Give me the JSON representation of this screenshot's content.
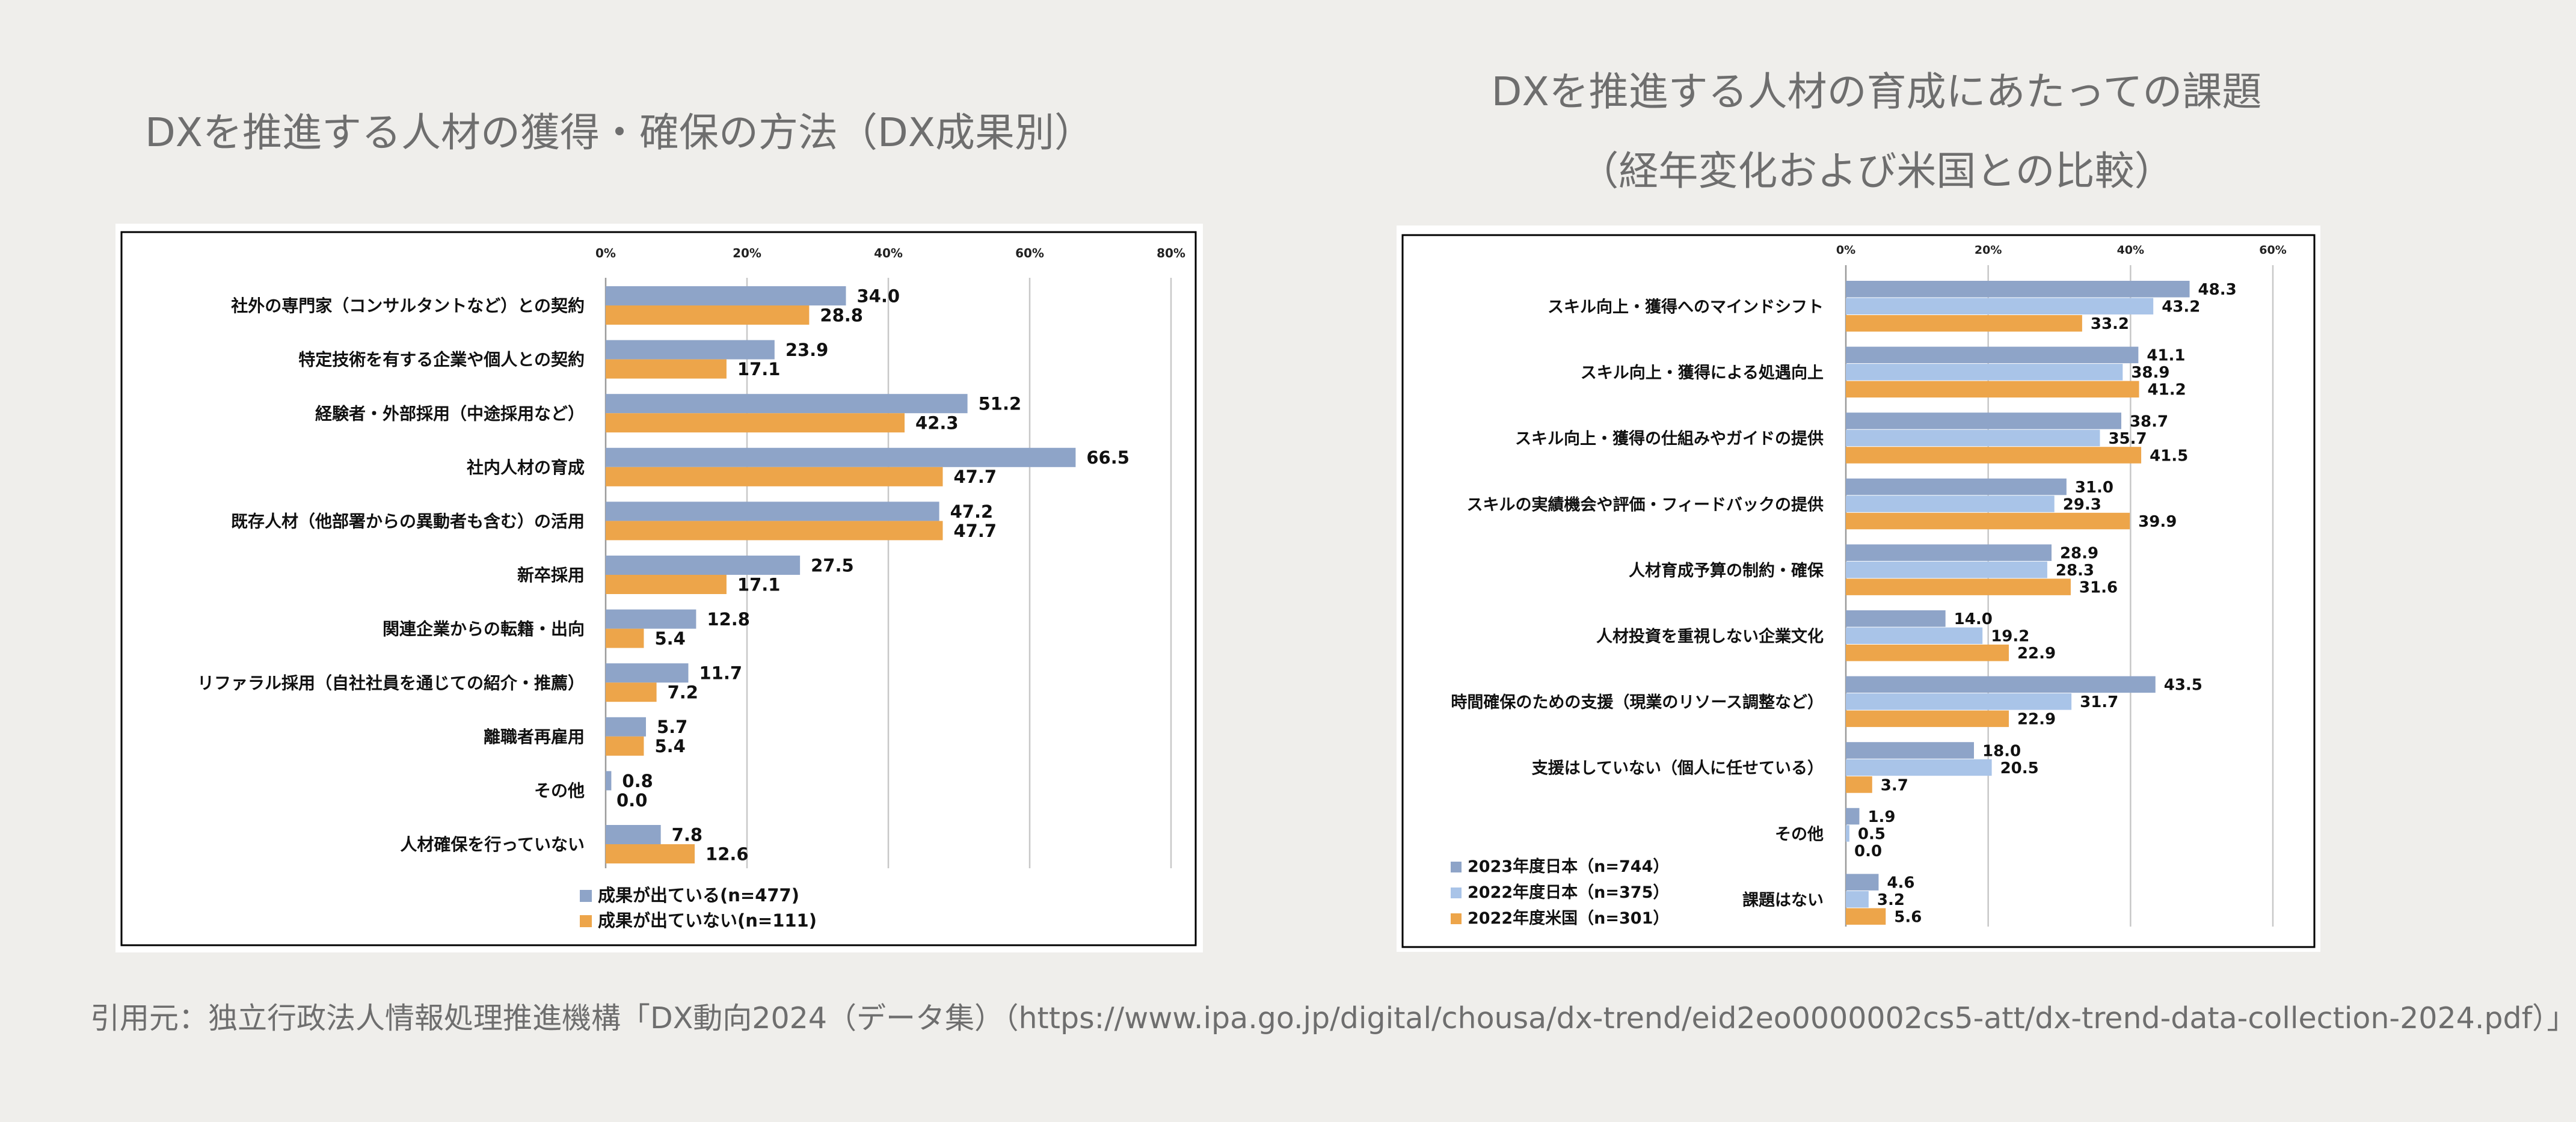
{
  "titles": {
    "left": "DXを推進する人材の獲得・確保の方法（DX成果別）",
    "right_line1": "DXを推進する人材の育成にあたっての課題",
    "right_line2": "（経年変化および米国との比較）"
  },
  "citation": "引用元：独立行政法人情報処理推進機構「DX動向2024（データ集）（https://www.ipa.go.jp/digital/chousa/dx-trend/eid2eo0000002cs5-att/dx-trend-data-collection-2024.pdf）」",
  "colors": {
    "background": "#efeeeb",
    "blue": "#8ea4c8",
    "light_blue": "#a9c4e8",
    "orange": "#eda54a",
    "grid": "#c8c8c8",
    "text": "#222222"
  },
  "chart_data": [
    {
      "type": "bar",
      "orientation": "horizontal",
      "title": "DXを推進する人材の獲得・確保の方法（DX成果別）",
      "xlim": [
        0,
        80
      ],
      "xticks": [
        "0%",
        "20%",
        "40%",
        "60%",
        "80%"
      ],
      "grid": true,
      "legend_position": "bottom-left",
      "categories": [
        "社外の専門家（コンサルタントなど）との契約",
        "特定技術を有する企業や個人との契約",
        "経験者・外部採用（中途採用など）",
        "社内人材の育成",
        "既存人材（他部署からの異動者も含む）の活用",
        "新卒採用",
        "関連企業からの転籍・出向",
        "リファラル採用（自社社員を通じての紹介・推薦）",
        "離職者再雇用",
        "その他",
        "人材確保を行っていない"
      ],
      "series": [
        {
          "name": "成果が出ている(n=477)",
          "color": "#8ea4c8",
          "values": [
            34.0,
            23.9,
            51.2,
            66.5,
            47.2,
            27.5,
            12.8,
            11.7,
            5.7,
            0.8,
            7.8
          ],
          "labels": [
            "34.0",
            "23.9",
            "51.2",
            "66.5",
            "47.2",
            "27.5",
            "12.8",
            "11.7",
            "5.7",
            "0.8",
            "7.8"
          ]
        },
        {
          "name": "成果が出ていない(n=111)",
          "color": "#eda54a",
          "values": [
            28.8,
            17.1,
            42.3,
            47.7,
            47.7,
            17.1,
            5.4,
            7.2,
            5.4,
            0.0,
            12.6
          ],
          "labels": [
            "28.8",
            "17.1",
            "42.3",
            "47.7",
            "47.7",
            "17.1",
            "5.4",
            "7.2",
            "5.4",
            "0.0",
            "12.6"
          ]
        }
      ]
    },
    {
      "type": "bar",
      "orientation": "horizontal",
      "title": "DXを推進する人材の育成にあたっての課題（経年変化および米国との比較）",
      "xlim": [
        0,
        60
      ],
      "xticks": [
        "0%",
        "20%",
        "40%",
        "60%"
      ],
      "grid": true,
      "legend_position": "bottom-left",
      "categories": [
        "スキル向上・獲得へのマインドシフト",
        "スキル向上・獲得による処遇向上",
        "スキル向上・獲得の仕組みやガイドの提供",
        "スキルの実績機会や評価・フィードバックの提供",
        "人材育成予算の制約・確保",
        "人材投資を重視しない企業文化",
        "時間確保のための支援（現業のリソース調整など）",
        "支援はしていない（個人に任せている）",
        "その他",
        "課題はない"
      ],
      "series": [
        {
          "name": "2023年度日本（n=744）",
          "color": "#8ea4c8",
          "values": [
            48.3,
            41.1,
            38.7,
            31.0,
            28.9,
            14.0,
            43.5,
            18.0,
            1.9,
            4.6
          ],
          "labels": [
            "48.3",
            "41.1",
            "38.7",
            "31.0",
            "28.9",
            "14.0",
            "43.5",
            "18.0",
            "1.9",
            "4.6"
          ]
        },
        {
          "name": "2022年度日本（n=375）",
          "color": "#a9c4e8",
          "values": [
            43.2,
            38.9,
            35.7,
            29.3,
            28.3,
            19.2,
            31.7,
            20.5,
            0.5,
            3.2
          ],
          "labels": [
            "43.2",
            "38.9",
            "35.7",
            "29.3",
            "28.3",
            "19.2",
            "31.7",
            "20.5",
            "0.5",
            "3.2"
          ]
        },
        {
          "name": "2022年度米国（n=301）",
          "color": "#eda54a",
          "values": [
            33.2,
            41.2,
            41.5,
            39.9,
            31.6,
            22.9,
            22.9,
            3.7,
            0.0,
            5.6
          ],
          "labels": [
            "33.2",
            "41.2",
            "41.5",
            "39.9",
            "31.6",
            "22.9",
            "22.9",
            "3.7",
            "0.0",
            "5.6"
          ]
        }
      ]
    }
  ]
}
